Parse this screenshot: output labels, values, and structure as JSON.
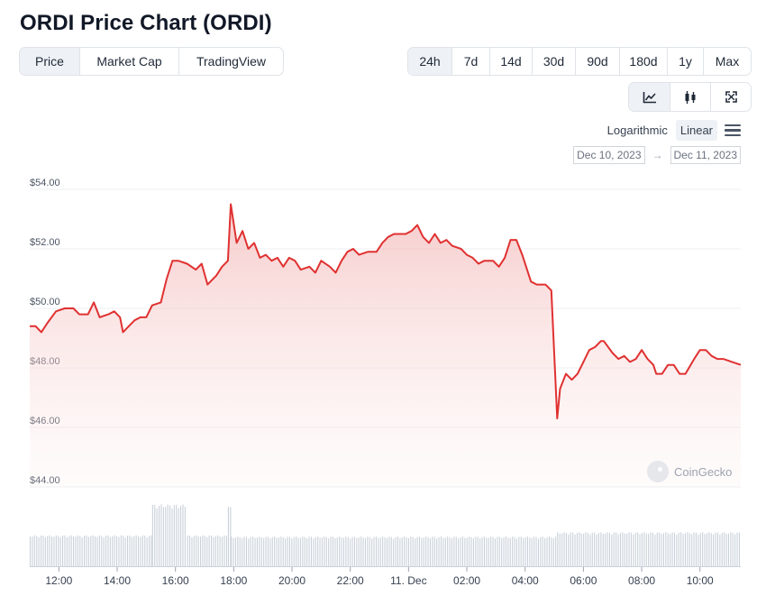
{
  "title": "ORDI Price Chart (ORDI)",
  "view_tabs": [
    {
      "label": "Price",
      "active": true
    },
    {
      "label": "Market Cap",
      "active": false
    },
    {
      "label": "TradingView",
      "active": false
    }
  ],
  "range_tabs": [
    {
      "label": "24h",
      "active": true
    },
    {
      "label": "7d",
      "active": false
    },
    {
      "label": "14d",
      "active": false
    },
    {
      "label": "30d",
      "active": false
    },
    {
      "label": "90d",
      "active": false
    },
    {
      "label": "180d",
      "active": false
    },
    {
      "label": "1y",
      "active": false
    },
    {
      "label": "Max",
      "active": false
    }
  ],
  "chart_types": [
    {
      "icon": "line-chart-icon",
      "active": true
    },
    {
      "icon": "candlestick-icon",
      "active": false
    },
    {
      "icon": "fullscreen-icon",
      "active": false
    }
  ],
  "scale": {
    "logarithmic": "Logarithmic",
    "linear": "Linear",
    "selected": "Linear"
  },
  "date_range": {
    "from": "Dec 10, 2023",
    "arrow": "→",
    "to": "Dec 11, 2023"
  },
  "watermark": "CoinGecko",
  "colors": {
    "line": "#e03131",
    "fill": "#f5c6c6",
    "volume": "#c9d1da",
    "grid": "#eceff3"
  },
  "chart_data": {
    "type": "area",
    "ylim": [
      44,
      54
    ],
    "yticks": [
      44,
      46,
      48,
      50,
      52,
      54
    ],
    "ytick_labels": [
      "$44.00",
      "$46.00",
      "$48.00",
      "$50.00",
      "$52.00",
      "$54.00"
    ],
    "xticks": [
      12,
      14,
      16,
      18,
      20,
      22,
      24,
      26,
      28,
      30,
      32,
      34
    ],
    "xtick_labels": [
      "12:00",
      "14:00",
      "16:00",
      "18:00",
      "20:00",
      "22:00",
      "11. Dec",
      "02:00",
      "04:00",
      "06:00",
      "08:00",
      "10:00"
    ],
    "xlim": [
      11.0,
      35.4
    ],
    "price_points": [
      [
        11.0,
        49.4
      ],
      [
        11.2,
        49.4
      ],
      [
        11.4,
        49.2
      ],
      [
        11.6,
        49.5
      ],
      [
        11.9,
        49.9
      ],
      [
        12.2,
        50.0
      ],
      [
        12.5,
        50.0
      ],
      [
        12.7,
        49.8
      ],
      [
        13.0,
        49.8
      ],
      [
        13.2,
        50.2
      ],
      [
        13.4,
        49.7
      ],
      [
        13.7,
        49.8
      ],
      [
        13.9,
        49.9
      ],
      [
        14.1,
        49.7
      ],
      [
        14.2,
        49.2
      ],
      [
        14.4,
        49.4
      ],
      [
        14.6,
        49.6
      ],
      [
        14.8,
        49.7
      ],
      [
        15.0,
        49.7
      ],
      [
        15.2,
        50.1
      ],
      [
        15.5,
        50.2
      ],
      [
        15.7,
        51.0
      ],
      [
        15.9,
        51.6
      ],
      [
        16.1,
        51.6
      ],
      [
        16.4,
        51.5
      ],
      [
        16.7,
        51.3
      ],
      [
        16.9,
        51.5
      ],
      [
        17.1,
        50.8
      ],
      [
        17.4,
        51.1
      ],
      [
        17.6,
        51.4
      ],
      [
        17.8,
        51.6
      ],
      [
        17.9,
        53.5
      ],
      [
        18.1,
        52.2
      ],
      [
        18.3,
        52.6
      ],
      [
        18.5,
        52.0
      ],
      [
        18.7,
        52.2
      ],
      [
        18.9,
        51.7
      ],
      [
        19.1,
        51.8
      ],
      [
        19.3,
        51.6
      ],
      [
        19.5,
        51.7
      ],
      [
        19.7,
        51.4
      ],
      [
        19.9,
        51.7
      ],
      [
        20.1,
        51.6
      ],
      [
        20.3,
        51.3
      ],
      [
        20.6,
        51.4
      ],
      [
        20.8,
        51.2
      ],
      [
        21.0,
        51.6
      ],
      [
        21.3,
        51.4
      ],
      [
        21.5,
        51.2
      ],
      [
        21.7,
        51.6
      ],
      [
        21.9,
        51.9
      ],
      [
        22.1,
        52.0
      ],
      [
        22.3,
        51.8
      ],
      [
        22.6,
        51.9
      ],
      [
        22.9,
        51.9
      ],
      [
        23.1,
        52.2
      ],
      [
        23.3,
        52.4
      ],
      [
        23.5,
        52.5
      ],
      [
        23.7,
        52.5
      ],
      [
        23.9,
        52.5
      ],
      [
        24.1,
        52.6
      ],
      [
        24.3,
        52.8
      ],
      [
        24.5,
        52.4
      ],
      [
        24.7,
        52.2
      ],
      [
        24.9,
        52.5
      ],
      [
        25.1,
        52.2
      ],
      [
        25.3,
        52.3
      ],
      [
        25.5,
        52.1
      ],
      [
        25.8,
        52.0
      ],
      [
        26.0,
        51.8
      ],
      [
        26.2,
        51.7
      ],
      [
        26.4,
        51.5
      ],
      [
        26.6,
        51.6
      ],
      [
        26.9,
        51.6
      ],
      [
        27.1,
        51.4
      ],
      [
        27.3,
        51.7
      ],
      [
        27.5,
        52.3
      ],
      [
        27.7,
        52.3
      ],
      [
        27.9,
        51.8
      ],
      [
        28.2,
        50.9
      ],
      [
        28.4,
        50.8
      ],
      [
        28.7,
        50.8
      ],
      [
        28.9,
        50.6
      ],
      [
        29.1,
        46.3
      ],
      [
        29.2,
        47.3
      ],
      [
        29.4,
        47.8
      ],
      [
        29.6,
        47.6
      ],
      [
        29.8,
        47.8
      ],
      [
        30.0,
        48.2
      ],
      [
        30.2,
        48.6
      ],
      [
        30.4,
        48.7
      ],
      [
        30.6,
        48.9
      ],
      [
        30.7,
        48.9
      ],
      [
        31.0,
        48.5
      ],
      [
        31.2,
        48.3
      ],
      [
        31.4,
        48.4
      ],
      [
        31.6,
        48.2
      ],
      [
        31.8,
        48.3
      ],
      [
        32.0,
        48.6
      ],
      [
        32.2,
        48.3
      ],
      [
        32.4,
        48.1
      ],
      [
        32.5,
        47.8
      ],
      [
        32.7,
        47.8
      ],
      [
        32.9,
        48.1
      ],
      [
        33.1,
        48.1
      ],
      [
        33.3,
        47.8
      ],
      [
        33.5,
        47.8
      ],
      [
        33.8,
        48.3
      ],
      [
        34.0,
        48.6
      ],
      [
        34.2,
        48.6
      ],
      [
        34.4,
        48.4
      ],
      [
        34.6,
        48.3
      ],
      [
        34.8,
        48.3
      ],
      [
        35.1,
        48.2
      ],
      [
        35.4,
        48.1
      ]
    ],
    "volume_bars": [
      {
        "from": 11.0,
        "to": 15.2,
        "level": 0.5
      },
      {
        "from": 15.2,
        "to": 16.4,
        "level": 1.0
      },
      {
        "from": 16.4,
        "to": 17.8,
        "level": 0.5
      },
      {
        "from": 17.8,
        "to": 17.9,
        "level": 1.0
      },
      {
        "from": 17.9,
        "to": 29.1,
        "level": 0.48
      },
      {
        "from": 29.1,
        "to": 35.4,
        "level": 0.55
      }
    ]
  }
}
